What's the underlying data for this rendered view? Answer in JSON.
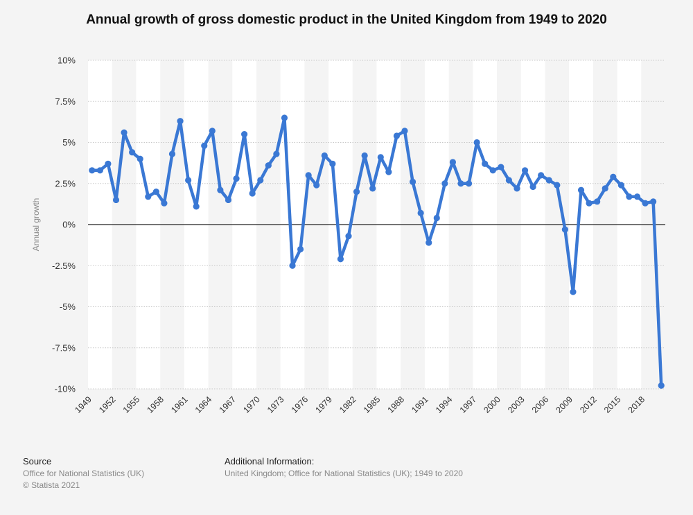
{
  "colors": {
    "line": "#3a78d4",
    "band": "#ffffff",
    "background": "#f4f4f4",
    "grid": "#c8c8c8",
    "zero_line": "#222222"
  },
  "footer": {
    "source_heading": "Source",
    "source_lines": [
      "Office for National Statistics (UK)",
      "© Statista 2021"
    ],
    "info_heading": "Additional Information:",
    "info_text": "United Kingdom; Office for National Statistics (UK); 1949 to 2020"
  },
  "chart_data": {
    "type": "line",
    "title": "Annual growth of gross domestic product in the United Kingdom from 1949 to 2020",
    "xlabel": "",
    "ylabel": "Annual growth",
    "ylim": [
      -10,
      10
    ],
    "yticks": [
      10,
      7.5,
      5,
      2.5,
      0,
      -2.5,
      -5,
      -7.5,
      -10
    ],
    "ytick_labels": [
      "10%",
      "7.5%",
      "5%",
      "2.5%",
      "0%",
      "-2.5%",
      "-5%",
      "-7.5%",
      "-10%"
    ],
    "xticks": [
      1949,
      1952,
      1955,
      1958,
      1961,
      1964,
      1967,
      1970,
      1973,
      1976,
      1979,
      1982,
      1985,
      1988,
      1991,
      1994,
      1997,
      2000,
      2003,
      2006,
      2009,
      2012,
      2015,
      2018
    ],
    "grid": true,
    "legend": "none",
    "x": [
      1949,
      1950,
      1951,
      1952,
      1953,
      1954,
      1955,
      1956,
      1957,
      1958,
      1959,
      1960,
      1961,
      1962,
      1963,
      1964,
      1965,
      1966,
      1967,
      1968,
      1969,
      1970,
      1971,
      1972,
      1973,
      1974,
      1975,
      1976,
      1977,
      1978,
      1979,
      1980,
      1981,
      1982,
      1983,
      1984,
      1985,
      1986,
      1987,
      1988,
      1989,
      1990,
      1991,
      1992,
      1993,
      1994,
      1995,
      1996,
      1997,
      1998,
      1999,
      2000,
      2001,
      2002,
      2003,
      2004,
      2005,
      2006,
      2007,
      2008,
      2009,
      2010,
      2011,
      2012,
      2013,
      2014,
      2015,
      2016,
      2017,
      2018,
      2019,
      2020
    ],
    "series": [
      {
        "values": [
          3.3,
          3.3,
          3.7,
          1.5,
          5.6,
          4.4,
          4.0,
          1.7,
          2.0,
          1.3,
          4.3,
          6.3,
          2.7,
          1.1,
          4.8,
          5.7,
          2.1,
          1.5,
          2.8,
          5.5,
          1.9,
          2.7,
          3.6,
          4.3,
          6.5,
          -2.5,
          -1.5,
          3.0,
          2.4,
          4.2,
          3.7,
          -2.1,
          -0.7,
          2.0,
          4.2,
          2.2,
          4.1,
          3.2,
          5.4,
          5.7,
          2.6,
          0.7,
          -1.1,
          0.4,
          2.5,
          3.8,
          2.5,
          2.5,
          5.0,
          3.7,
          3.3,
          3.5,
          2.7,
          2.2,
          3.3,
          2.3,
          3.0,
          2.7,
          2.4,
          -0.3,
          -4.1,
          2.1,
          1.3,
          1.4,
          2.2,
          2.9,
          2.4,
          1.7,
          1.7,
          1.3,
          1.4,
          -9.8
        ]
      }
    ]
  }
}
